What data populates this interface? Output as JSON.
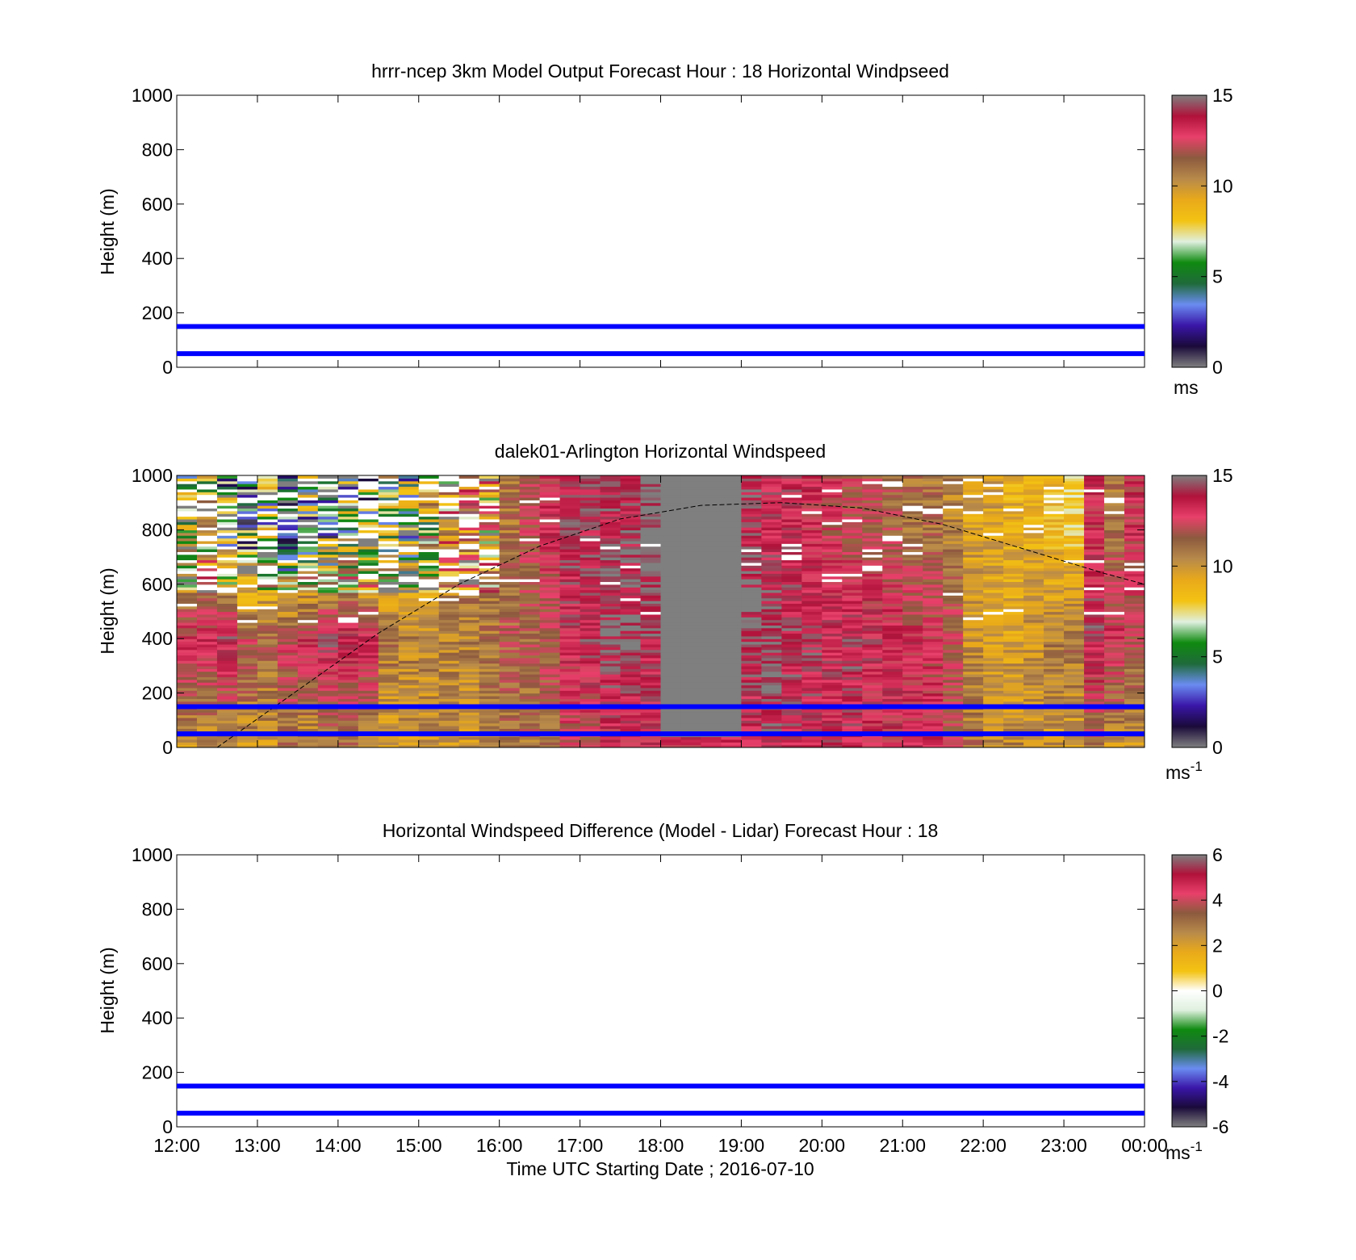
{
  "colors": {
    "speed_colormap": [
      "#7f7f7f",
      "#1a0a3a",
      "#3a16a8",
      "#6a8cf0",
      "#1f6a3a",
      "#0f8a10",
      "#dff0df",
      "#f3c313",
      "#e9a91a",
      "#b88a4a",
      "#8c5a3e",
      "#e8406a",
      "#b0123a",
      "#7f7f7f"
    ],
    "diff_colormap": [
      "#7f7f7f",
      "#1a0a3a",
      "#3a16a8",
      "#6a8cf0",
      "#1f6a3a",
      "#0f8a10",
      "#dff0df",
      "#ffffff",
      "#f3c313",
      "#e9a91a",
      "#b88a4a",
      "#8c5a3e",
      "#e8406a",
      "#b0123a",
      "#7f7f7f"
    ],
    "reference_line": "#0000ff",
    "missing": "#7f7f7f"
  },
  "chart_data": [
    {
      "type": "heatmap",
      "title": "hrrr-ncep 3km Model Output   Forecast Hour : 18 Horizontal Windpseed",
      "ylabel": "Height (m)",
      "xlabel": "",
      "ylim": [
        0,
        1000
      ],
      "yticks": [
        "0",
        "200",
        "400",
        "600",
        "800",
        "1000"
      ],
      "xlim": [
        "12:00",
        "00:00"
      ],
      "reference_lines_m": [
        50,
        150
      ],
      "colorbar": {
        "ticks": [
          "0",
          "5",
          "10",
          "15"
        ],
        "range": [
          0,
          15
        ],
        "unit": "ms"
      }
    },
    {
      "type": "heatmap",
      "title": "dalek01-Arlington  Horizontal Windspeed",
      "ylabel": "Height (m)",
      "xlabel": "",
      "ylim": [
        0,
        1000
      ],
      "yticks": [
        "0",
        "200",
        "400",
        "600",
        "800",
        "1000"
      ],
      "xlim": [
        "12:00",
        "00:00"
      ],
      "reference_lines_m": [
        50,
        150
      ],
      "colorbar": {
        "ticks": [
          "0",
          "5",
          "10",
          "15"
        ],
        "range": [
          0,
          15
        ],
        "unit": "ms",
        "unit_exp": "-1"
      },
      "boundary_layer_curve": {
        "time_h": [
          12.5,
          13.5,
          14.5,
          15.5,
          16.5,
          17.5,
          18.5,
          19.5,
          20.5,
          21.5,
          22.5,
          23.5,
          24.0
        ],
        "height_m": [
          0,
          210,
          420,
          600,
          740,
          840,
          890,
          900,
          880,
          820,
          730,
          640,
          600
        ]
      },
      "column_profiles_ms": {
        "time_start_h": [
          12.0,
          12.25,
          12.5,
          12.75,
          13.0,
          13.25,
          13.5,
          13.75,
          14.0,
          14.25,
          14.5,
          14.75,
          15.0,
          15.25,
          15.5,
          15.75,
          16.0,
          16.25,
          16.5,
          16.75,
          17.0,
          17.25,
          17.5,
          17.75,
          18.0,
          18.25,
          18.5,
          18.75,
          19.0,
          19.25,
          19.5,
          19.75,
          20.0,
          20.25,
          20.5,
          20.75,
          21.0,
          21.25,
          21.5,
          21.75,
          22.0,
          22.25,
          22.5,
          22.75,
          23.0,
          23.25,
          23.5,
          23.75
        ],
        "low_speed": [
          10,
          10,
          10,
          10,
          10,
          11,
          10,
          11,
          11,
          10,
          9.5,
          10,
          10,
          10,
          10,
          10.5,
          11,
          11,
          11,
          12,
          12,
          13,
          13,
          13,
          13,
          13,
          13,
          13,
          13,
          14,
          13.5,
          13.5,
          13.5,
          13.5,
          13,
          13,
          13,
          13,
          12,
          11,
          10.5,
          10.5,
          10,
          10,
          9.5,
          11,
          10,
          10
        ],
        "mid_speed": [
          13,
          13,
          14,
          12,
          11.5,
          12.5,
          13,
          14,
          13.5,
          13.5,
          11,
          10.5,
          10.5,
          10.5,
          10.5,
          11,
          11.5,
          11.5,
          12,
          13.5,
          14,
          14.5,
          14.5,
          14,
          15,
          15,
          15,
          14.5,
          14.5,
          14.5,
          14,
          14,
          13.5,
          14,
          13.5,
          13.5,
          13,
          12.5,
          12,
          10,
          9.5,
          9.5,
          10,
          10.5,
          11,
          14,
          13,
          12
        ],
        "high_speed": [
          7,
          8,
          5,
          4,
          6,
          3,
          5,
          4,
          6,
          5,
          7,
          6,
          8,
          10,
          11,
          10,
          11,
          12,
          13,
          14,
          14,
          14,
          14,
          15,
          15,
          15,
          14,
          14,
          14,
          13.5,
          13.5,
          13,
          12.5,
          12,
          12,
          11.5,
          11,
          11,
          10.5,
          9.5,
          9.5,
          9,
          9,
          8.5,
          8,
          13,
          11,
          13
        ],
        "missing_block": {
          "time_h": [
            18.0,
            19.0
          ],
          "height_m": [
            40,
            1000
          ]
        }
      }
    },
    {
      "type": "heatmap",
      "title": "Horizontal Windspeed Difference (Model - Lidar) Forecast Hour : 18",
      "ylabel": "Height (m)",
      "xlabel": "Time UTC  Starting Date ; 2016-07-10",
      "ylim": [
        0,
        1000
      ],
      "yticks": [
        "0",
        "200",
        "400",
        "600",
        "800",
        "1000"
      ],
      "xticks": [
        "12:00",
        "13:00",
        "14:00",
        "15:00",
        "16:00",
        "17:00",
        "18:00",
        "19:00",
        "20:00",
        "21:00",
        "22:00",
        "23:00",
        "00:00"
      ],
      "reference_lines_m": [
        50,
        150
      ],
      "colorbar": {
        "ticks": [
          "-6",
          "-4",
          "-2",
          "0",
          "2",
          "4",
          "6"
        ],
        "range": [
          -6,
          6
        ],
        "unit": "ms",
        "unit_exp": "-1"
      }
    }
  ]
}
